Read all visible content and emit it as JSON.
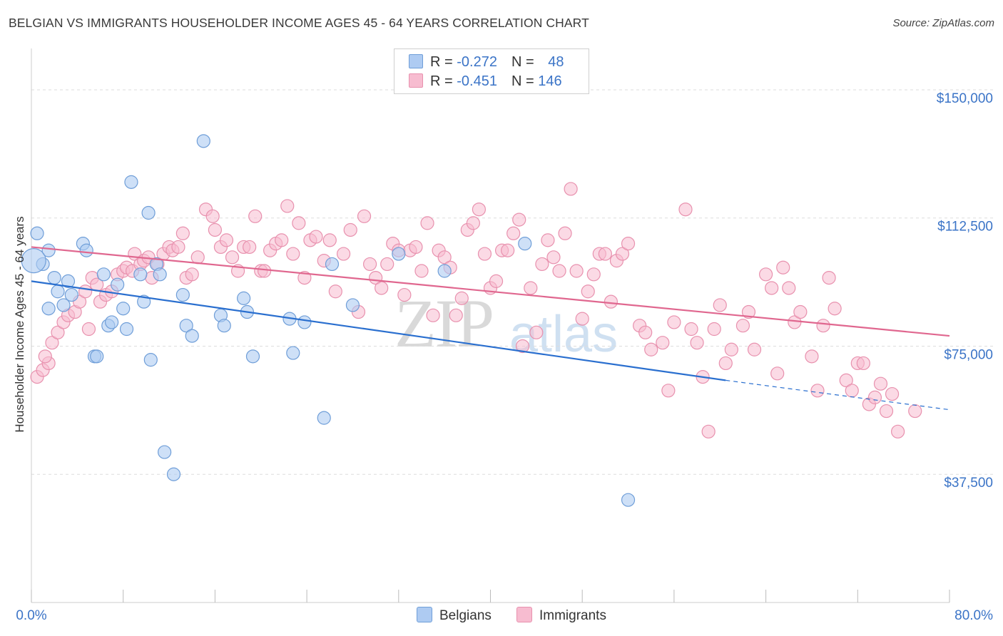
{
  "title": "BELGIAN VS IMMIGRANTS HOUSEHOLDER INCOME AGES 45 - 64 YEARS CORRELATION CHART",
  "source": "Source: ZipAtlas.com",
  "watermark": {
    "zip": "ZIP",
    "atlas": "atlas"
  },
  "legend": {
    "belgians": {
      "r_label": "R = ",
      "r_value": "-0.272",
      "n_label": "N = ",
      "n_value": "48"
    },
    "immigrants": {
      "r_label": "R = ",
      "r_value": "-0.451",
      "n_label": "N = ",
      "n_value": "146"
    }
  },
  "bottom_legend": {
    "belgians": "Belgians",
    "immigrants": "Immigrants"
  },
  "colors": {
    "belgian_fill": "#aecbf2",
    "belgian_stroke": "#6f9ed8",
    "belgian_line": "#2a6fcf",
    "immigrant_fill": "#f7bcd0",
    "immigrant_stroke": "#e891ae",
    "immigrant_line": "#e0678f",
    "tick_label": "#3b74c7",
    "grid": "#dddddd"
  },
  "chart_data": {
    "type": "scatter",
    "xlabel": "",
    "ylabel": "Householder Income Ages 45 - 64 years",
    "xlim": [
      0,
      80
    ],
    "ylim": [
      0,
      160000
    ],
    "x_tick_labels": {
      "min": "0.0%",
      "max": "80.0%"
    },
    "y_ticks": [
      37500,
      75000,
      112500,
      150000
    ],
    "y_tick_labels": [
      "$37,500",
      "$75,000",
      "$112,500",
      "$150,000"
    ],
    "series": [
      {
        "name": "Belgians",
        "r": -0.272,
        "n": 48,
        "trend": {
          "x0": 0,
          "y0": 94000,
          "x1": 60.5,
          "y1": 65000,
          "dash_to_x": 80,
          "dash_to_y": 56400
        },
        "points": [
          [
            0.5,
            108000
          ],
          [
            1.0,
            99000
          ],
          [
            1.5,
            103000
          ],
          [
            2.0,
            95000
          ],
          [
            2.3,
            91000
          ],
          [
            2.8,
            87000
          ],
          [
            3.2,
            94000
          ],
          [
            3.5,
            90000
          ],
          [
            4.5,
            105000
          ],
          [
            4.8,
            103000
          ],
          [
            5.5,
            72000
          ],
          [
            5.7,
            72000
          ],
          [
            6.3,
            96000
          ],
          [
            6.7,
            81000
          ],
          [
            7.0,
            82000
          ],
          [
            7.5,
            93000
          ],
          [
            8.0,
            86000
          ],
          [
            8.3,
            80000
          ],
          [
            8.7,
            123000
          ],
          [
            9.5,
            96000
          ],
          [
            9.8,
            88000
          ],
          [
            10.2,
            114000
          ],
          [
            10.4,
            71000
          ],
          [
            10.9,
            99000
          ],
          [
            11.2,
            96000
          ],
          [
            11.6,
            44000
          ],
          [
            12.4,
            37500
          ],
          [
            13.2,
            90000
          ],
          [
            13.5,
            81000
          ],
          [
            14.0,
            78000
          ],
          [
            15.0,
            135000
          ],
          [
            16.5,
            84000
          ],
          [
            16.8,
            81000
          ],
          [
            18.5,
            89000
          ],
          [
            18.8,
            85000
          ],
          [
            19.3,
            72000
          ],
          [
            22.5,
            83000
          ],
          [
            22.8,
            73000
          ],
          [
            23.8,
            82000
          ],
          [
            25.5,
            54000
          ],
          [
            26.2,
            99000
          ],
          [
            28.0,
            87000
          ],
          [
            32.0,
            102000
          ],
          [
            36.0,
            97000
          ],
          [
            43.0,
            105000
          ],
          [
            52.0,
            30000
          ],
          [
            1.5,
            86000
          ],
          [
            0.2,
            100000
          ]
        ]
      },
      {
        "name": "Immigrants",
        "r": -0.451,
        "n": 146,
        "trend": {
          "x0": 0,
          "y0": 104000,
          "x1": 80,
          "y1": 78000
        },
        "points": [
          [
            0.5,
            66000
          ],
          [
            1.0,
            68000
          ],
          [
            1.5,
            70000
          ],
          [
            1.8,
            76000
          ],
          [
            2.3,
            79000
          ],
          [
            2.8,
            82000
          ],
          [
            3.2,
            84000
          ],
          [
            3.8,
            85000
          ],
          [
            4.2,
            88000
          ],
          [
            4.7,
            91000
          ],
          [
            5.3,
            95000
          ],
          [
            5.7,
            93000
          ],
          [
            6.0,
            88000
          ],
          [
            6.5,
            90000
          ],
          [
            7.0,
            91000
          ],
          [
            7.5,
            96000
          ],
          [
            8.0,
            97000
          ],
          [
            8.3,
            98000
          ],
          [
            8.8,
            97000
          ],
          [
            9.0,
            102000
          ],
          [
            9.5,
            99000
          ],
          [
            9.8,
            100000
          ],
          [
            10.2,
            101000
          ],
          [
            10.5,
            95000
          ],
          [
            11.0,
            99000
          ],
          [
            11.5,
            102000
          ],
          [
            12.0,
            104000
          ],
          [
            12.3,
            103000
          ],
          [
            12.8,
            104000
          ],
          [
            13.2,
            108000
          ],
          [
            13.5,
            95000
          ],
          [
            14.0,
            96000
          ],
          [
            14.5,
            101000
          ],
          [
            15.2,
            115000
          ],
          [
            15.8,
            113000
          ],
          [
            16.0,
            109000
          ],
          [
            16.5,
            104000
          ],
          [
            17.0,
            106000
          ],
          [
            17.5,
            101000
          ],
          [
            18.0,
            97000
          ],
          [
            18.5,
            104000
          ],
          [
            19.0,
            104000
          ],
          [
            19.5,
            113000
          ],
          [
            20.0,
            97000
          ],
          [
            20.3,
            97000
          ],
          [
            20.8,
            103000
          ],
          [
            21.3,
            105000
          ],
          [
            21.8,
            106000
          ],
          [
            22.3,
            116000
          ],
          [
            22.8,
            102000
          ],
          [
            23.3,
            111000
          ],
          [
            23.8,
            95000
          ],
          [
            24.3,
            106000
          ],
          [
            24.8,
            107000
          ],
          [
            25.5,
            100000
          ],
          [
            26.0,
            106000
          ],
          [
            26.5,
            91000
          ],
          [
            27.2,
            102000
          ],
          [
            27.8,
            109000
          ],
          [
            28.5,
            85000
          ],
          [
            29.0,
            113000
          ],
          [
            29.5,
            99000
          ],
          [
            30.0,
            95000
          ],
          [
            30.5,
            92000
          ],
          [
            31.0,
            99000
          ],
          [
            31.5,
            105000
          ],
          [
            32.0,
            103000
          ],
          [
            32.5,
            90000
          ],
          [
            33.0,
            103000
          ],
          [
            33.5,
            104000
          ],
          [
            34.0,
            97000
          ],
          [
            34.5,
            111000
          ],
          [
            35.0,
            84000
          ],
          [
            35.5,
            103000
          ],
          [
            36.0,
            101000
          ],
          [
            36.5,
            98000
          ],
          [
            37.0,
            84000
          ],
          [
            37.5,
            89000
          ],
          [
            38.0,
            109000
          ],
          [
            38.5,
            111000
          ],
          [
            39.0,
            115000
          ],
          [
            39.5,
            102000
          ],
          [
            40.0,
            92000
          ],
          [
            40.5,
            94000
          ],
          [
            41.0,
            103000
          ],
          [
            41.5,
            103000
          ],
          [
            42.0,
            108000
          ],
          [
            42.5,
            112000
          ],
          [
            42.8,
            75000
          ],
          [
            43.5,
            92000
          ],
          [
            44.0,
            79000
          ],
          [
            44.5,
            99000
          ],
          [
            45.0,
            106000
          ],
          [
            45.5,
            101000
          ],
          [
            46.0,
            97000
          ],
          [
            46.5,
            108000
          ],
          [
            47.0,
            121000
          ],
          [
            47.5,
            97000
          ],
          [
            48.0,
            83000
          ],
          [
            48.5,
            91000
          ],
          [
            49.0,
            96000
          ],
          [
            49.5,
            102000
          ],
          [
            50.0,
            102000
          ],
          [
            50.5,
            88000
          ],
          [
            51.0,
            100000
          ],
          [
            51.5,
            102000
          ],
          [
            52.0,
            105000
          ],
          [
            53.0,
            81000
          ],
          [
            53.5,
            79000
          ],
          [
            54.0,
            74000
          ],
          [
            55.0,
            76000
          ],
          [
            55.5,
            62000
          ],
          [
            56.0,
            82000
          ],
          [
            57.0,
            115000
          ],
          [
            57.5,
            80000
          ],
          [
            58.0,
            76000
          ],
          [
            58.5,
            66000
          ],
          [
            59.0,
            50000
          ],
          [
            59.5,
            80000
          ],
          [
            60.0,
            87000
          ],
          [
            60.5,
            70000
          ],
          [
            61.0,
            74000
          ],
          [
            62.0,
            81000
          ],
          [
            62.5,
            85000
          ],
          [
            63.0,
            74000
          ],
          [
            64.0,
            96000
          ],
          [
            64.5,
            92000
          ],
          [
            65.0,
            67000
          ],
          [
            65.5,
            98000
          ],
          [
            66.0,
            92000
          ],
          [
            66.5,
            82000
          ],
          [
            67.0,
            85000
          ],
          [
            68.0,
            72000
          ],
          [
            68.5,
            62000
          ],
          [
            69.0,
            81000
          ],
          [
            69.5,
            95000
          ],
          [
            70.0,
            86000
          ],
          [
            71.0,
            65000
          ],
          [
            71.5,
            62000
          ],
          [
            72.0,
            70000
          ],
          [
            72.5,
            70000
          ],
          [
            73.0,
            58000
          ],
          [
            73.5,
            60000
          ],
          [
            74.0,
            64000
          ],
          [
            74.5,
            56000
          ],
          [
            75.0,
            61000
          ],
          [
            75.5,
            50000
          ],
          [
            77.0,
            56000
          ],
          [
            1.2,
            72000
          ],
          [
            5.0,
            80000
          ]
        ]
      }
    ]
  }
}
